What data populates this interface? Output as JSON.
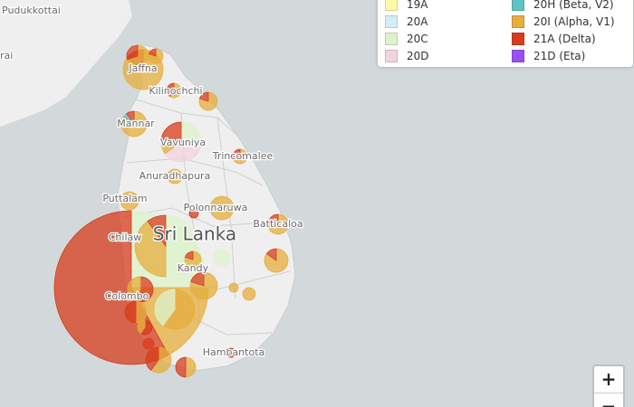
{
  "map": {
    "labels": [
      "Pudukkottai",
      "rai",
      "Jaffna",
      "Kilinochchi",
      "Mannar",
      "Vavuniya",
      "Trincomalee",
      "Anuradhapura",
      "Puttalam",
      "Polonnaruwa",
      "Batticaloa",
      "Sri Lanka",
      "Chilaw",
      "Kandy",
      "Colombo",
      "Hambantota"
    ]
  },
  "legend": [
    {
      "label": "19A",
      "color": "#fdf9a8"
    },
    {
      "label": "20A",
      "color": "#d3eef3"
    },
    {
      "label": "20C",
      "color": "#ddf3cc"
    },
    {
      "label": "20D",
      "color": "#f3d3de"
    },
    {
      "label": "20H (Beta, V2)",
      "color": "#5ec4bf"
    },
    {
      "label": "20I (Alpha, V1)",
      "color": "#e6ae3c"
    },
    {
      "label": "21A (Delta)",
      "color": "#d73c1c"
    },
    {
      "label": "21D (Eta)",
      "color": "#9a50ef"
    }
  ],
  "zoom": [
    "+",
    "−"
  ]
}
